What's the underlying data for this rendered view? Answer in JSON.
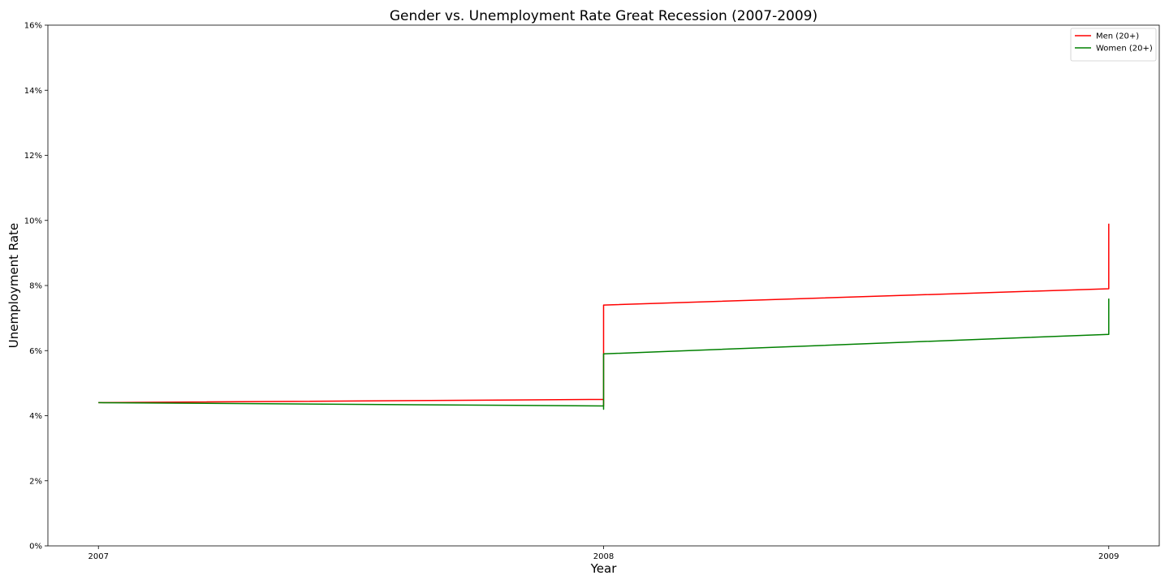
{
  "chart_data": {
    "type": "line",
    "title": "Gender vs. Unemployment Rate Great Recession (2007-2009)",
    "xlabel": "Year",
    "ylabel": "Unemployment Rate",
    "xlim": [
      2006.9,
      2009.1
    ],
    "ylim": [
      0,
      16
    ],
    "xticks": [
      2007,
      2008,
      2009
    ],
    "xtick_labels": [
      "2007",
      "2008",
      "2009"
    ],
    "yticks": [
      0,
      2,
      4,
      6,
      8,
      10,
      12,
      14,
      16
    ],
    "ytick_labels": [
      "0%",
      "2%",
      "4%",
      "6%",
      "8%",
      "10%",
      "12%",
      "14%",
      "16%"
    ],
    "grid": false,
    "legend_position": "top-right",
    "series": [
      {
        "name": "Men (20+)",
        "color": "#ff0000",
        "x": [
          2007,
          2008,
          2008,
          2008,
          2009,
          2009
        ],
        "y": [
          4.4,
          4.5,
          4.3,
          7.4,
          7.9,
          9.9
        ]
      },
      {
        "name": "Women (20+)",
        "color": "#008000",
        "x": [
          2007,
          2008,
          2008,
          2008,
          2009,
          2009
        ],
        "y": [
          4.4,
          4.3,
          4.2,
          5.9,
          6.5,
          7.6
        ]
      }
    ]
  }
}
